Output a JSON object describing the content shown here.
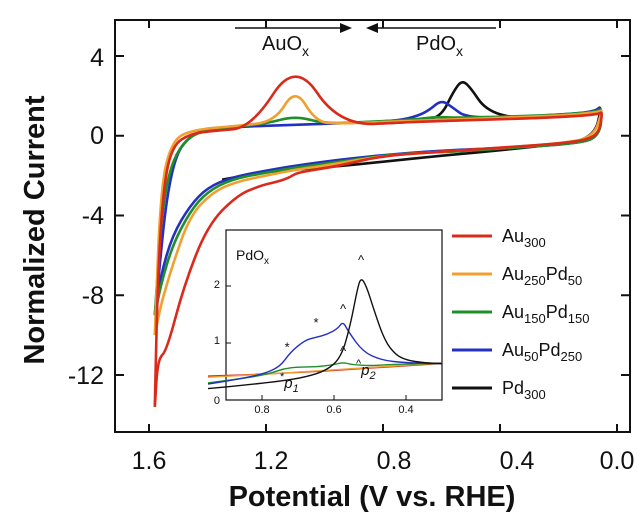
{
  "chart_data": [
    {
      "type": "line",
      "xlabel": "Potential (V vs. RHE)",
      "ylabel": "Normalized Current",
      "xlim": [
        1.6,
        -0.05
      ],
      "ylim": [
        -14.5,
        5.2
      ],
      "x_ticks": [
        "1.6",
        "1.2",
        "0.8",
        "0.4",
        "0.0"
      ],
      "y_ticks": [
        "4",
        "0",
        "-4",
        "-8",
        "-12"
      ],
      "x_reversed": true,
      "legend_position": "right",
      "annotations": [
        {
          "text": "AuOx",
          "base": "AuO",
          "sub": "x",
          "arrow": "right"
        },
        {
          "text": "PdOx",
          "base": "PdO",
          "sub": "x",
          "arrow": "left"
        }
      ],
      "series": [
        {
          "name": "Au300",
          "base": "Au",
          "sub1": "300",
          "mid": "",
          "sub2": "",
          "color": "#d92a1c",
          "x": [
            1.58,
            1.57,
            1.54,
            1.48,
            1.4,
            1.3,
            1.22,
            1.16,
            1.12,
            1.1,
            1.07,
            1.03,
            0.95,
            0.8,
            0.6,
            0.4,
            0.2,
            0.1,
            0.06,
            0.05,
            0.06,
            0.12,
            0.25,
            0.45,
            0.7,
            0.95,
            1.1,
            1.25,
            1.38,
            1.46,
            1.52,
            1.55,
            1.57,
            1.58
          ],
          "y": [
            -13.6,
            -11.2,
            -10.8,
            -7.5,
            -4.5,
            -3.0,
            -2.5,
            -2.3,
            -2.1,
            -1.9,
            -1.8,
            -1.7,
            -1.5,
            -1.0,
            -0.8,
            -0.6,
            -0.4,
            -0.2,
            0.2,
            1.2,
            1.1,
            1.0,
            0.9,
            0.8,
            0.7,
            0.5,
            3.8,
            0.4,
            0.25,
            0.1,
            -0.5,
            -2.5,
            -7.0,
            -13.6
          ]
        },
        {
          "name": "Au250Pd50",
          "base": "Au",
          "sub1": "250",
          "mid": "Pd",
          "sub2": "50",
          "color": "#f0a030",
          "x": [
            1.58,
            1.56,
            1.52,
            1.46,
            1.38,
            1.3,
            1.2,
            1.1,
            1.0,
            0.8,
            0.6,
            0.4,
            0.2,
            0.08,
            0.05,
            0.06,
            0.15,
            0.3,
            0.5,
            0.7,
            0.95,
            1.03,
            1.1,
            1.17,
            1.3,
            1.45,
            1.52,
            1.56,
            1.58
          ],
          "y": [
            -10.0,
            -8.5,
            -6.5,
            -4.0,
            -2.8,
            -2.3,
            -2.0,
            -1.7,
            -1.5,
            -1.0,
            -0.8,
            -0.6,
            -0.4,
            -0.1,
            1.3,
            1.2,
            1.05,
            0.95,
            0.85,
            0.75,
            0.6,
            0.7,
            2.4,
            0.7,
            0.5,
            0.3,
            -0.2,
            -2.5,
            -10.0
          ]
        },
        {
          "name": "Au150Pd150",
          "base": "Au",
          "sub1": "150",
          "mid": "Pd",
          "sub2": "150",
          "color": "#1f8f2a",
          "x": [
            1.58,
            1.56,
            1.52,
            1.46,
            1.4,
            1.32,
            1.22,
            1.1,
            0.95,
            0.75,
            0.55,
            0.35,
            0.15,
            0.06,
            0.05,
            0.07,
            0.2,
            0.4,
            0.55,
            0.62,
            0.7,
            0.85,
            1.0,
            1.1,
            1.2,
            1.35,
            1.48,
            1.55,
            1.58
          ],
          "y": [
            -9.0,
            -7.5,
            -5.5,
            -3.8,
            -2.8,
            -2.2,
            -1.9,
            -1.6,
            -1.3,
            -0.9,
            -0.8,
            -0.6,
            -0.4,
            -0.1,
            1.4,
            1.2,
            1.05,
            0.95,
            0.9,
            0.95,
            0.8,
            0.7,
            0.6,
            1.0,
            0.6,
            0.4,
            0.0,
            -2.5,
            -9.0
          ]
        },
        {
          "name": "Au50Pd250",
          "base": "Au",
          "sub1": "50",
          "mid": "Pd",
          "sub2": "250",
          "color": "#2430c0",
          "x": [
            1.58,
            1.56,
            1.52,
            1.46,
            1.4,
            1.32,
            1.22,
            1.1,
            0.95,
            0.75,
            0.55,
            0.35,
            0.15,
            0.06,
            0.05,
            0.08,
            0.2,
            0.4,
            0.52,
            0.56,
            0.6,
            0.64,
            0.68,
            0.75,
            0.9,
            1.1,
            1.3,
            1.45,
            1.53,
            1.58
          ],
          "y": [
            -9.0,
            -7.0,
            -5.0,
            -3.5,
            -2.6,
            -2.1,
            -1.8,
            -1.5,
            -1.2,
            -0.9,
            -0.7,
            -0.6,
            -0.4,
            -0.1,
            1.5,
            1.2,
            1.05,
            0.9,
            0.95,
            1.4,
            1.8,
            1.3,
            1.0,
            0.75,
            0.65,
            0.55,
            0.45,
            0.3,
            -1.5,
            -9.0
          ]
        },
        {
          "name": "Pd300",
          "base": "Pd",
          "sub1": "300",
          "mid": "",
          "sub2": "",
          "color": "#111111",
          "x": [
            1.35,
            1.2,
            1.0,
            0.8,
            0.6,
            0.45,
            0.25,
            0.08,
            0.05,
            0.08,
            0.2,
            0.35,
            0.45,
            0.5,
            0.53,
            0.56,
            0.6,
            0.66,
            0.75,
            0.85
          ],
          "y": [
            -2.2,
            -1.8,
            -1.6,
            -1.3,
            -1.0,
            -0.8,
            -0.5,
            -0.2,
            1.6,
            1.1,
            0.95,
            0.85,
            1.3,
            2.4,
            2.8,
            2.2,
            1.0,
            0.75,
            0.65,
            0.6
          ]
        }
      ]
    },
    {
      "type": "line",
      "title": "PdOx",
      "title_base": "PdO",
      "title_sub": "x",
      "xlim": [
        0.95,
        0.3
      ],
      "ylim": [
        0,
        2.6
      ],
      "x_ticks": [
        "0.8",
        "0.6",
        "0.4"
      ],
      "y_ticks": [
        "0",
        "1",
        "2"
      ],
      "annotations": [
        {
          "text": "*p1",
          "base": "p",
          "sub": "1",
          "mark": "*"
        },
        {
          "text": "^p2",
          "base": "p",
          "sub": "2",
          "mark": "^"
        }
      ],
      "markers": [
        {
          "symbol": "*",
          "x": 0.73,
          "y": 0.85
        },
        {
          "symbol": "*",
          "x": 0.65,
          "y": 1.28
        },
        {
          "symbol": "^",
          "x": 0.575,
          "y": 1.52
        },
        {
          "symbol": "^",
          "x": 0.575,
          "y": 0.78
        },
        {
          "symbol": "^",
          "x": 0.525,
          "y": 2.38
        }
      ],
      "series": [
        {
          "name": "Au300",
          "color": "#d92a1c",
          "x": [
            0.95,
            0.85,
            0.75,
            0.65,
            0.55,
            0.45,
            0.35,
            0.3
          ],
          "y": [
            0.42,
            0.44,
            0.47,
            0.5,
            0.54,
            0.58,
            0.62,
            0.64
          ]
        },
        {
          "name": "Au250Pd50",
          "color": "#f0a030",
          "x": [
            0.95,
            0.85,
            0.75,
            0.65,
            0.55,
            0.45,
            0.35,
            0.3
          ],
          "y": [
            0.4,
            0.43,
            0.47,
            0.51,
            0.55,
            0.59,
            0.63,
            0.65
          ]
        },
        {
          "name": "Au150Pd150",
          "color": "#1f8f2a",
          "x": [
            0.95,
            0.85,
            0.78,
            0.74,
            0.7,
            0.65,
            0.6,
            0.575,
            0.55,
            0.5,
            0.45,
            0.35,
            0.3
          ],
          "y": [
            0.3,
            0.38,
            0.46,
            0.55,
            0.58,
            0.58,
            0.62,
            0.66,
            0.62,
            0.6,
            0.62,
            0.64,
            0.64
          ]
        },
        {
          "name": "Au50Pd250",
          "color": "#2430c0",
          "x": [
            0.95,
            0.88,
            0.8,
            0.75,
            0.72,
            0.68,
            0.65,
            0.62,
            0.59,
            0.575,
            0.56,
            0.52,
            0.47,
            0.4,
            0.3
          ],
          "y": [
            0.28,
            0.35,
            0.45,
            0.58,
            0.85,
            1.05,
            1.1,
            1.15,
            1.25,
            1.38,
            1.2,
            0.85,
            0.7,
            0.65,
            0.64
          ]
        },
        {
          "name": "Pd300",
          "color": "#111111",
          "x": [
            0.95,
            0.85,
            0.75,
            0.68,
            0.62,
            0.58,
            0.555,
            0.535,
            0.525,
            0.51,
            0.49,
            0.46,
            0.43,
            0.4,
            0.35,
            0.3
          ],
          "y": [
            0.2,
            0.26,
            0.33,
            0.4,
            0.52,
            0.75,
            1.3,
            1.95,
            2.15,
            2.0,
            1.6,
            1.05,
            0.8,
            0.7,
            0.65,
            0.64
          ]
        }
      ]
    }
  ]
}
